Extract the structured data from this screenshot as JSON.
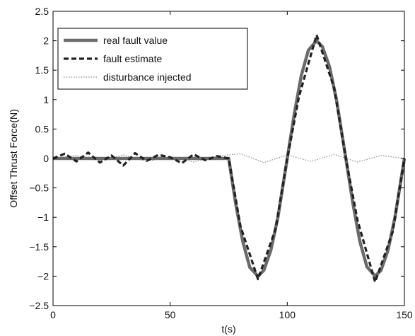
{
  "chart_data": {
    "type": "line",
    "title": "",
    "xlabel": "t(s)",
    "ylabel": "Offset Thrust Force(N)",
    "xlim": [
      0,
      150
    ],
    "ylim": [
      -2.5,
      2.5
    ],
    "x_ticks": [
      0,
      50,
      100,
      150
    ],
    "x_tick_labels": [
      "0",
      "50",
      "100",
      "150"
    ],
    "y_ticks": [
      -2.5,
      -2,
      -1.5,
      -1,
      -0.5,
      0,
      0.5,
      1,
      1.5,
      2,
      2.5
    ],
    "y_tick_labels": [
      "−2.5",
      "−2",
      "−1.5",
      "−1",
      "−0.5",
      "0",
      "0.5",
      "1",
      "1.5",
      "2",
      "2.5"
    ],
    "grid": false,
    "legend": "top-left",
    "series": [
      {
        "name": "real fault value",
        "style": "solid",
        "color": "#6b6b6b",
        "x": [
          0,
          75,
          78,
          81,
          84,
          87.5,
          90,
          93,
          96,
          100,
          103,
          106,
          109,
          112.5,
          115,
          118,
          121,
          125,
          128,
          131,
          134,
          137.5,
          140,
          143,
          146,
          150
        ],
        "y": [
          0,
          0,
          -0.77,
          -1.41,
          -1.85,
          -2.0,
          -1.9,
          -1.56,
          -1.0,
          0.0,
          0.76,
          1.41,
          1.84,
          2.0,
          1.9,
          1.56,
          1.0,
          0.0,
          -0.76,
          -1.41,
          -1.84,
          -2.0,
          -1.9,
          -1.56,
          -1.0,
          0.0
        ]
      },
      {
        "name": "fault estimate",
        "style": "dashed",
        "color": "#222222",
        "x": [
          0,
          5,
          10,
          15,
          20,
          25,
          30,
          35,
          40,
          45,
          50,
          55,
          60,
          65,
          70,
          75,
          80,
          87.5,
          95,
          100,
          105,
          112.5,
          120,
          125,
          130,
          137.5,
          145,
          150
        ],
        "y": [
          0.0,
          0.08,
          -0.05,
          0.1,
          -0.07,
          0.05,
          -0.12,
          0.09,
          -0.04,
          0.06,
          0.02,
          -0.08,
          0.07,
          -0.03,
          0.04,
          0.0,
          -1.15,
          -2.05,
          -1.2,
          0.0,
          1.05,
          2.1,
          1.2,
          0.0,
          -1.05,
          -2.1,
          -1.25,
          0.0
        ]
      },
      {
        "name": "disturbance injected",
        "style": "dotted",
        "color": "#8a8a8a",
        "x": [
          0,
          10,
          20,
          30,
          40,
          50,
          60,
          70,
          80,
          90,
          100,
          110,
          120,
          130,
          140,
          150
        ],
        "y": [
          0.0,
          0.05,
          -0.04,
          0.06,
          -0.05,
          0.03,
          -0.06,
          0.04,
          0.08,
          -0.07,
          0.06,
          -0.05,
          0.07,
          -0.06,
          0.05,
          0.0
        ]
      }
    ]
  }
}
